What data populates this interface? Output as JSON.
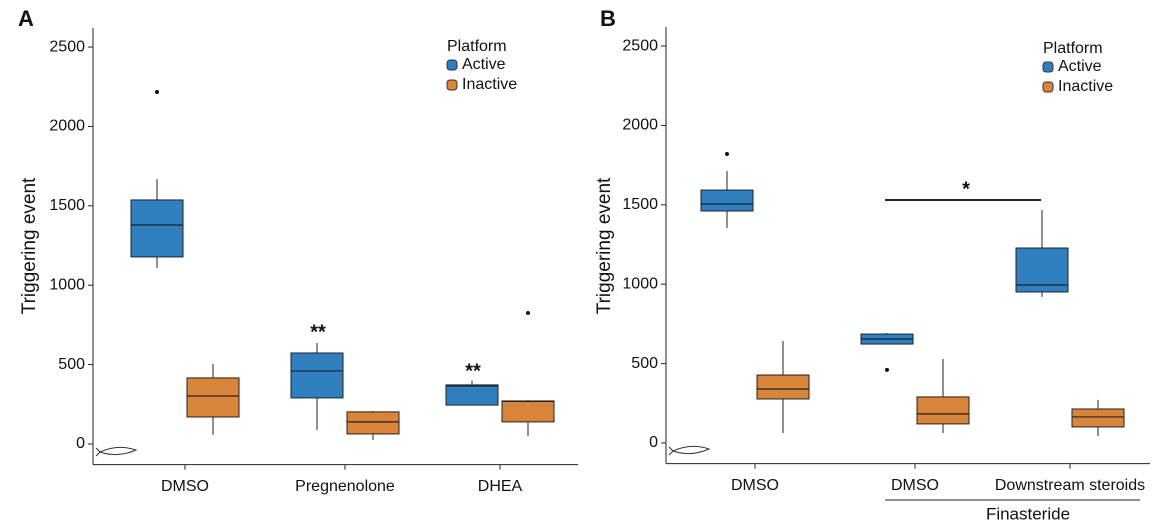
{
  "chart_data": [
    {
      "type": "box",
      "panel_label": "A",
      "ylabel": "Triggering event",
      "legend_title": "Platform",
      "categories": [
        "DMSO",
        "Pregnenolone",
        "DHEA"
      ],
      "ylim": [
        -130,
        2620
      ],
      "yticks": [
        0,
        500,
        1000,
        1500,
        2000,
        2500
      ],
      "annotations": [
        "**",
        "**"
      ],
      "series": [
        {
          "name": "Active",
          "color": "#2f7fc1",
          "boxes": [
            {
              "min": 1108,
              "q1": 1178,
              "median": 1379,
              "q3": 1537,
              "max": 1668,
              "outliers": [
                2217
              ]
            },
            {
              "min": 88,
              "q1": 290,
              "median": 460,
              "q3": 573,
              "max": 636,
              "outliers": []
            },
            {
              "min": 245,
              "q1": 245,
              "median": 365,
              "q3": 372,
              "max": 400,
              "outliers": []
            }
          ]
        },
        {
          "name": "Inactive",
          "color": "#d8843a",
          "boxes": [
            {
              "min": 57,
              "q1": 170,
              "median": 302,
              "q3": 416,
              "max": 504,
              "outliers": []
            },
            {
              "min": 25,
              "q1": 63,
              "median": 139,
              "q3": 202,
              "max": 208,
              "outliers": []
            },
            {
              "min": 50,
              "q1": 139,
              "median": 268,
              "q3": 271,
              "max": 275,
              "outliers": [
                825
              ]
            }
          ]
        }
      ]
    },
    {
      "type": "box",
      "panel_label": "B",
      "ylabel": "Triggering event",
      "legend_title": "Platform",
      "categories": [
        "DMSO",
        "DMSO",
        "Downstream steroids"
      ],
      "group_label": "Finasteride",
      "ylim": [
        -130,
        2620
      ],
      "yticks": [
        0,
        500,
        1000,
        1500,
        2000,
        2500
      ],
      "annotations": [
        "*"
      ],
      "series": [
        {
          "name": "Active",
          "color": "#2f7fc1",
          "boxes": [
            {
              "min": 1354,
              "q1": 1461,
              "median": 1505,
              "q3": 1593,
              "max": 1713,
              "outliers": [
                1820
              ]
            },
            {
              "min": 623,
              "q1": 623,
              "median": 655,
              "q3": 686,
              "max": 693,
              "outliers": [
                460
              ]
            },
            {
              "min": 920,
              "q1": 951,
              "median": 995,
              "q3": 1228,
              "max": 1467,
              "outliers": []
            }
          ]
        },
        {
          "name": "Inactive",
          "color": "#d8843a",
          "boxes": [
            {
              "min": 63,
              "q1": 277,
              "median": 340,
              "q3": 428,
              "max": 642,
              "outliers": []
            },
            {
              "min": 63,
              "q1": 120,
              "median": 183,
              "q3": 290,
              "max": 529,
              "outliers": []
            },
            {
              "min": 44,
              "q1": 101,
              "median": 164,
              "q3": 214,
              "max": 271,
              "outliers": []
            }
          ]
        }
      ]
    }
  ]
}
